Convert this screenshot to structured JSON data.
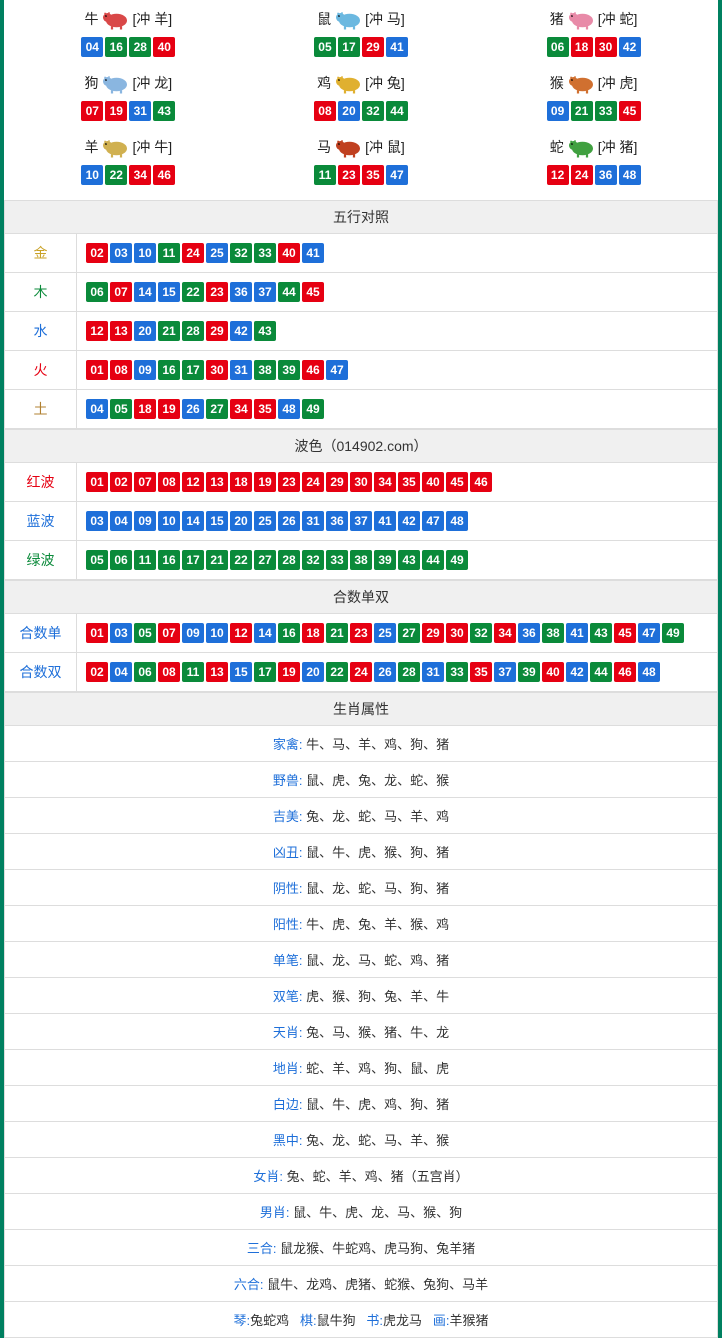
{
  "colors": {
    "red": "#e60012",
    "blue": "#1e6fd9",
    "green": "#0a8a3a"
  },
  "zodiac": [
    {
      "name": "牛",
      "conflict": "[冲 羊]",
      "icon_color": "#d94848",
      "nums": [
        {
          "n": "04",
          "c": "blue"
        },
        {
          "n": "16",
          "c": "green"
        },
        {
          "n": "28",
          "c": "green"
        },
        {
          "n": "40",
          "c": "red"
        }
      ]
    },
    {
      "name": "鼠",
      "conflict": "[冲 马]",
      "icon_color": "#6bb8e0",
      "nums": [
        {
          "n": "05",
          "c": "green"
        },
        {
          "n": "17",
          "c": "green"
        },
        {
          "n": "29",
          "c": "red"
        },
        {
          "n": "41",
          "c": "blue"
        }
      ]
    },
    {
      "name": "猪",
      "conflict": "[冲 蛇]",
      "icon_color": "#e88aa8",
      "nums": [
        {
          "n": "06",
          "c": "green"
        },
        {
          "n": "18",
          "c": "red"
        },
        {
          "n": "30",
          "c": "red"
        },
        {
          "n": "42",
          "c": "blue"
        }
      ]
    },
    {
      "name": "狗",
      "conflict": "[冲 龙]",
      "icon_color": "#8ab6e0",
      "nums": [
        {
          "n": "07",
          "c": "red"
        },
        {
          "n": "19",
          "c": "red"
        },
        {
          "n": "31",
          "c": "blue"
        },
        {
          "n": "43",
          "c": "green"
        }
      ]
    },
    {
      "name": "鸡",
      "conflict": "[冲 兔]",
      "icon_color": "#e0b030",
      "nums": [
        {
          "n": "08",
          "c": "red"
        },
        {
          "n": "20",
          "c": "blue"
        },
        {
          "n": "32",
          "c": "green"
        },
        {
          "n": "44",
          "c": "green"
        }
      ]
    },
    {
      "name": "猴",
      "conflict": "[冲 虎]",
      "icon_color": "#d07030",
      "nums": [
        {
          "n": "09",
          "c": "blue"
        },
        {
          "n": "21",
          "c": "green"
        },
        {
          "n": "33",
          "c": "green"
        },
        {
          "n": "45",
          "c": "red"
        }
      ]
    },
    {
      "name": "羊",
      "conflict": "[冲 牛]",
      "icon_color": "#d0b050",
      "nums": [
        {
          "n": "10",
          "c": "blue"
        },
        {
          "n": "22",
          "c": "green"
        },
        {
          "n": "34",
          "c": "red"
        },
        {
          "n": "46",
          "c": "red"
        }
      ]
    },
    {
      "name": "马",
      "conflict": "[冲 鼠]",
      "icon_color": "#c04020",
      "nums": [
        {
          "n": "11",
          "c": "green"
        },
        {
          "n": "23",
          "c": "red"
        },
        {
          "n": "35",
          "c": "red"
        },
        {
          "n": "47",
          "c": "blue"
        }
      ]
    },
    {
      "name": "蛇",
      "conflict": "[冲 猪]",
      "icon_color": "#40a040",
      "nums": [
        {
          "n": "12",
          "c": "red"
        },
        {
          "n": "24",
          "c": "red"
        },
        {
          "n": "36",
          "c": "blue"
        },
        {
          "n": "48",
          "c": "blue"
        }
      ]
    }
  ],
  "wuxing": {
    "title": "五行对照",
    "rows": [
      {
        "label": "金",
        "cls": "gold",
        "nums": [
          {
            "n": "02",
            "c": "red"
          },
          {
            "n": "03",
            "c": "blue"
          },
          {
            "n": "10",
            "c": "blue"
          },
          {
            "n": "11",
            "c": "green"
          },
          {
            "n": "24",
            "c": "red"
          },
          {
            "n": "25",
            "c": "blue"
          },
          {
            "n": "32",
            "c": "green"
          },
          {
            "n": "33",
            "c": "green"
          },
          {
            "n": "40",
            "c": "red"
          },
          {
            "n": "41",
            "c": "blue"
          }
        ]
      },
      {
        "label": "木",
        "cls": "wood",
        "nums": [
          {
            "n": "06",
            "c": "green"
          },
          {
            "n": "07",
            "c": "red"
          },
          {
            "n": "14",
            "c": "blue"
          },
          {
            "n": "15",
            "c": "blue"
          },
          {
            "n": "22",
            "c": "green"
          },
          {
            "n": "23",
            "c": "red"
          },
          {
            "n": "36",
            "c": "blue"
          },
          {
            "n": "37",
            "c": "blue"
          },
          {
            "n": "44",
            "c": "green"
          },
          {
            "n": "45",
            "c": "red"
          }
        ]
      },
      {
        "label": "水",
        "cls": "water",
        "nums": [
          {
            "n": "12",
            "c": "red"
          },
          {
            "n": "13",
            "c": "red"
          },
          {
            "n": "20",
            "c": "blue"
          },
          {
            "n": "21",
            "c": "green"
          },
          {
            "n": "28",
            "c": "green"
          },
          {
            "n": "29",
            "c": "red"
          },
          {
            "n": "42",
            "c": "blue"
          },
          {
            "n": "43",
            "c": "green"
          }
        ]
      },
      {
        "label": "火",
        "cls": "fire",
        "nums": [
          {
            "n": "01",
            "c": "red"
          },
          {
            "n": "08",
            "c": "red"
          },
          {
            "n": "09",
            "c": "blue"
          },
          {
            "n": "16",
            "c": "green"
          },
          {
            "n": "17",
            "c": "green"
          },
          {
            "n": "30",
            "c": "red"
          },
          {
            "n": "31",
            "c": "blue"
          },
          {
            "n": "38",
            "c": "green"
          },
          {
            "n": "39",
            "c": "green"
          },
          {
            "n": "46",
            "c": "red"
          },
          {
            "n": "47",
            "c": "blue"
          }
        ]
      },
      {
        "label": "土",
        "cls": "earth",
        "nums": [
          {
            "n": "04",
            "c": "blue"
          },
          {
            "n": "05",
            "c": "green"
          },
          {
            "n": "18",
            "c": "red"
          },
          {
            "n": "19",
            "c": "red"
          },
          {
            "n": "26",
            "c": "blue"
          },
          {
            "n": "27",
            "c": "green"
          },
          {
            "n": "34",
            "c": "red"
          },
          {
            "n": "35",
            "c": "red"
          },
          {
            "n": "48",
            "c": "blue"
          },
          {
            "n": "49",
            "c": "green"
          }
        ]
      }
    ]
  },
  "bose": {
    "title": "波色（014902.com）",
    "rows": [
      {
        "label": "红波",
        "cls": "redtxt",
        "nums": [
          {
            "n": "01",
            "c": "red"
          },
          {
            "n": "02",
            "c": "red"
          },
          {
            "n": "07",
            "c": "red"
          },
          {
            "n": "08",
            "c": "red"
          },
          {
            "n": "12",
            "c": "red"
          },
          {
            "n": "13",
            "c": "red"
          },
          {
            "n": "18",
            "c": "red"
          },
          {
            "n": "19",
            "c": "red"
          },
          {
            "n": "23",
            "c": "red"
          },
          {
            "n": "24",
            "c": "red"
          },
          {
            "n": "29",
            "c": "red"
          },
          {
            "n": "30",
            "c": "red"
          },
          {
            "n": "34",
            "c": "red"
          },
          {
            "n": "35",
            "c": "red"
          },
          {
            "n": "40",
            "c": "red"
          },
          {
            "n": "45",
            "c": "red"
          },
          {
            "n": "46",
            "c": "red"
          }
        ]
      },
      {
        "label": "蓝波",
        "cls": "bluetxt",
        "nums": [
          {
            "n": "03",
            "c": "blue"
          },
          {
            "n": "04",
            "c": "blue"
          },
          {
            "n": "09",
            "c": "blue"
          },
          {
            "n": "10",
            "c": "blue"
          },
          {
            "n": "14",
            "c": "blue"
          },
          {
            "n": "15",
            "c": "blue"
          },
          {
            "n": "20",
            "c": "blue"
          },
          {
            "n": "25",
            "c": "blue"
          },
          {
            "n": "26",
            "c": "blue"
          },
          {
            "n": "31",
            "c": "blue"
          },
          {
            "n": "36",
            "c": "blue"
          },
          {
            "n": "37",
            "c": "blue"
          },
          {
            "n": "41",
            "c": "blue"
          },
          {
            "n": "42",
            "c": "blue"
          },
          {
            "n": "47",
            "c": "blue"
          },
          {
            "n": "48",
            "c": "blue"
          }
        ]
      },
      {
        "label": "绿波",
        "cls": "greentxt",
        "nums": [
          {
            "n": "05",
            "c": "green"
          },
          {
            "n": "06",
            "c": "green"
          },
          {
            "n": "11",
            "c": "green"
          },
          {
            "n": "16",
            "c": "green"
          },
          {
            "n": "17",
            "c": "green"
          },
          {
            "n": "21",
            "c": "green"
          },
          {
            "n": "22",
            "c": "green"
          },
          {
            "n": "27",
            "c": "green"
          },
          {
            "n": "28",
            "c": "green"
          },
          {
            "n": "32",
            "c": "green"
          },
          {
            "n": "33",
            "c": "green"
          },
          {
            "n": "38",
            "c": "green"
          },
          {
            "n": "39",
            "c": "green"
          },
          {
            "n": "43",
            "c": "green"
          },
          {
            "n": "44",
            "c": "green"
          },
          {
            "n": "49",
            "c": "green"
          }
        ]
      }
    ]
  },
  "heshu": {
    "title": "合数单双",
    "rows": [
      {
        "label": "合数单",
        "cls": "bluetxt",
        "nums": [
          {
            "n": "01",
            "c": "red"
          },
          {
            "n": "03",
            "c": "blue"
          },
          {
            "n": "05",
            "c": "green"
          },
          {
            "n": "07",
            "c": "red"
          },
          {
            "n": "09",
            "c": "blue"
          },
          {
            "n": "10",
            "c": "blue"
          },
          {
            "n": "12",
            "c": "red"
          },
          {
            "n": "14",
            "c": "blue"
          },
          {
            "n": "16",
            "c": "green"
          },
          {
            "n": "18",
            "c": "red"
          },
          {
            "n": "21",
            "c": "green"
          },
          {
            "n": "23",
            "c": "red"
          },
          {
            "n": "25",
            "c": "blue"
          },
          {
            "n": "27",
            "c": "green"
          },
          {
            "n": "29",
            "c": "red"
          },
          {
            "n": "30",
            "c": "red"
          },
          {
            "n": "32",
            "c": "green"
          },
          {
            "n": "34",
            "c": "red"
          },
          {
            "n": "36",
            "c": "blue"
          },
          {
            "n": "38",
            "c": "green"
          },
          {
            "n": "41",
            "c": "blue"
          },
          {
            "n": "43",
            "c": "green"
          },
          {
            "n": "45",
            "c": "red"
          },
          {
            "n": "47",
            "c": "blue"
          },
          {
            "n": "49",
            "c": "green"
          }
        ]
      },
      {
        "label": "合数双",
        "cls": "bluetxt",
        "nums": [
          {
            "n": "02",
            "c": "red"
          },
          {
            "n": "04",
            "c": "blue"
          },
          {
            "n": "06",
            "c": "green"
          },
          {
            "n": "08",
            "c": "red"
          },
          {
            "n": "11",
            "c": "green"
          },
          {
            "n": "13",
            "c": "red"
          },
          {
            "n": "15",
            "c": "blue"
          },
          {
            "n": "17",
            "c": "green"
          },
          {
            "n": "19",
            "c": "red"
          },
          {
            "n": "20",
            "c": "blue"
          },
          {
            "n": "22",
            "c": "green"
          },
          {
            "n": "24",
            "c": "red"
          },
          {
            "n": "26",
            "c": "blue"
          },
          {
            "n": "28",
            "c": "green"
          },
          {
            "n": "31",
            "c": "blue"
          },
          {
            "n": "33",
            "c": "green"
          },
          {
            "n": "35",
            "c": "red"
          },
          {
            "n": "37",
            "c": "blue"
          },
          {
            "n": "39",
            "c": "green"
          },
          {
            "n": "40",
            "c": "red"
          },
          {
            "n": "42",
            "c": "blue"
          },
          {
            "n": "44",
            "c": "green"
          },
          {
            "n": "46",
            "c": "red"
          },
          {
            "n": "48",
            "c": "blue"
          }
        ]
      }
    ]
  },
  "shengxiao": {
    "title": "生肖属性",
    "rows": [
      {
        "label": "家禽:",
        "val": "牛、马、羊、鸡、狗、猪"
      },
      {
        "label": "野兽:",
        "val": "鼠、虎、兔、龙、蛇、猴"
      },
      {
        "label": "吉美:",
        "val": "兔、龙、蛇、马、羊、鸡"
      },
      {
        "label": "凶丑:",
        "val": "鼠、牛、虎、猴、狗、猪"
      },
      {
        "label": "阴性:",
        "val": "鼠、龙、蛇、马、狗、猪"
      },
      {
        "label": "阳性:",
        "val": "牛、虎、兔、羊、猴、鸡"
      },
      {
        "label": "单笔:",
        "val": "鼠、龙、马、蛇、鸡、猪"
      },
      {
        "label": "双笔:",
        "val": "虎、猴、狗、兔、羊、牛"
      },
      {
        "label": "天肖:",
        "val": "兔、马、猴、猪、牛、龙"
      },
      {
        "label": "地肖:",
        "val": "蛇、羊、鸡、狗、鼠、虎"
      },
      {
        "label": "白边:",
        "val": "鼠、牛、虎、鸡、狗、猪"
      },
      {
        "label": "黑中:",
        "val": "兔、龙、蛇、马、羊、猴"
      },
      {
        "label": "女肖:",
        "val": "兔、蛇、羊、鸡、猪（五宫肖）"
      },
      {
        "label": "男肖:",
        "val": "鼠、牛、虎、龙、马、猴、狗"
      },
      {
        "label": "三合:",
        "val": "鼠龙猴、牛蛇鸡、虎马狗、兔羊猪"
      },
      {
        "label": "六合:",
        "val": "鼠牛、龙鸡、虎猪、蛇猴、兔狗、马羊"
      }
    ],
    "footer": [
      {
        "l": "琴:",
        "v": "兔蛇鸡"
      },
      {
        "l": "棋:",
        "v": "鼠牛狗"
      },
      {
        "l": "书:",
        "v": "虎龙马"
      },
      {
        "l": "画:",
        "v": "羊猴猪"
      }
    ]
  }
}
